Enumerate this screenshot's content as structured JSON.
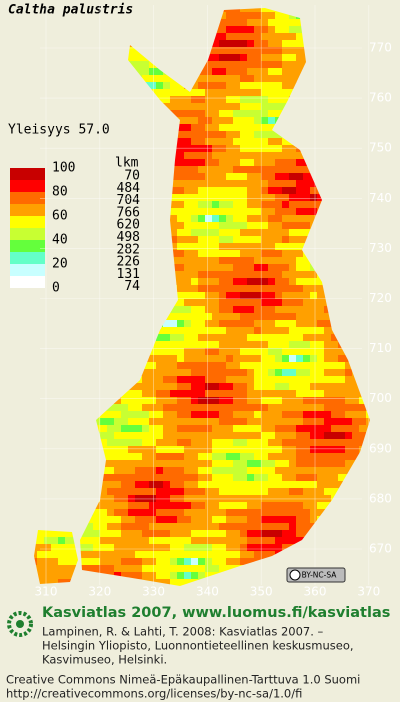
{
  "header": {
    "title": "Caltha palustris",
    "frequency": "Yleisyys  57.0"
  },
  "legend": {
    "scale_labels": [
      "100",
      "80",
      "60",
      "40",
      "20",
      "0"
    ],
    "count_header": "lkm",
    "counts": [
      "70",
      "484",
      "704",
      "766",
      "620",
      "498",
      "282",
      "226",
      "131",
      "74"
    ],
    "colors": [
      "#c80000",
      "#ff0000",
      "#ff6a00",
      "#ffa000",
      "#ffff00",
      "#c8ff32",
      "#64ff3c",
      "#64ffc8",
      "#c8ffff",
      "#ffffff"
    ]
  },
  "grid": {
    "north_labels": [
      "770",
      "760",
      "750",
      "740",
      "730",
      "720",
      "710",
      "700",
      "690",
      "680",
      "670"
    ],
    "east_labels": [
      "310",
      "320",
      "330",
      "340",
      "350",
      "360",
      "370"
    ]
  },
  "license_badge": "BY-NC-SA",
  "footer": {
    "heading": "Kasviatlas 2007, www.luomus.fi/kasviatlas",
    "citation": [
      "Lampinen, R. & Lahti, T. 2008: Kasviatlas 2007. –",
      "Helsingin Yliopisto, Luonnontieteellinen keskusmuseo,",
      "Kasvimuseo, Helsinki."
    ],
    "license": [
      "Creative Commons Nimeä-Epäkaupallinen-Tarttuva 1.0 Suomi",
      "http://creativecommons.org/licenses/by-nc-sa/1.0/fi"
    ]
  }
}
